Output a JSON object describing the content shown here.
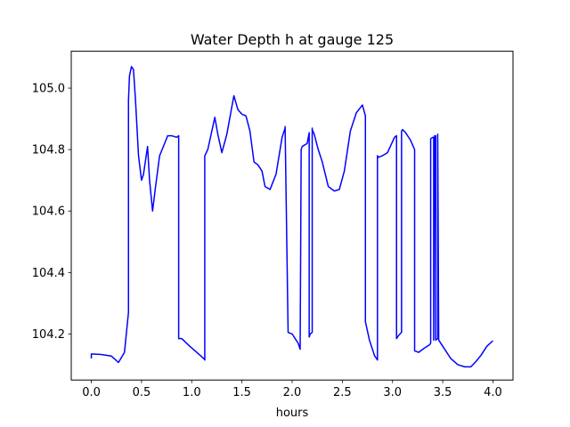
{
  "chart_data": {
    "type": "line",
    "title": "Water Depth h at gauge 125",
    "xlabel": "hours",
    "ylabel": "",
    "xlim": [
      -0.2,
      4.2
    ],
    "ylim": [
      104.05,
      105.12
    ],
    "xticks": [
      0.0,
      0.5,
      1.0,
      1.5,
      2.0,
      2.5,
      3.0,
      3.5,
      4.0
    ],
    "xtick_labels": [
      "0.0",
      "0.5",
      "1.0",
      "1.5",
      "2.0",
      "2.5",
      "3.0",
      "3.5",
      "4.0"
    ],
    "yticks": [
      104.2,
      104.4,
      104.6,
      104.8,
      105.0
    ],
    "ytick_labels": [
      "104.2",
      "104.4",
      "104.6",
      "104.8",
      "105.0"
    ],
    "grid": false,
    "legend": "none",
    "series": [
      {
        "color": "#0000ff",
        "x": [
          0.0,
          0.0,
          0.1,
          0.2,
          0.27,
          0.33,
          0.37,
          0.37,
          0.38,
          0.4,
          0.42,
          0.44,
          0.47,
          0.5,
          0.52,
          0.56,
          0.58,
          0.61,
          0.64,
          0.68,
          0.73,
          0.76,
          0.8,
          0.85,
          0.87,
          0.87,
          0.9,
          0.98,
          1.05,
          1.12,
          1.13,
          1.13,
          1.16,
          1.2,
          1.23,
          1.26,
          1.3,
          1.35,
          1.4,
          1.42,
          1.46,
          1.5,
          1.54,
          1.58,
          1.62,
          1.66,
          1.7,
          1.73,
          1.78,
          1.84,
          1.9,
          1.93,
          1.93,
          1.96,
          2.0,
          2.06,
          2.08,
          2.09,
          2.1,
          2.15,
          2.17,
          2.17,
          2.18,
          2.2,
          2.2,
          2.2,
          2.22,
          2.26,
          2.3,
          2.36,
          2.42,
          2.47,
          2.52,
          2.58,
          2.64,
          2.7,
          2.73,
          2.73,
          2.77,
          2.82,
          2.85,
          2.85,
          2.86,
          2.9,
          2.95,
          3.02,
          3.04,
          3.04,
          3.06,
          3.09,
          3.09,
          3.1,
          3.13,
          3.18,
          3.22,
          3.22,
          3.26,
          3.3,
          3.37,
          3.38,
          3.38,
          3.4,
          3.41,
          3.41,
          3.42,
          3.43,
          3.43,
          3.45,
          3.45,
          3.46,
          3.5,
          3.58,
          3.65,
          3.72,
          3.78,
          3.83,
          3.88,
          3.94,
          4.0
        ],
        "y": [
          104.12,
          104.135,
          104.133,
          104.128,
          104.107,
          104.14,
          104.27,
          104.96,
          105.04,
          105.07,
          105.06,
          104.96,
          104.78,
          104.7,
          104.72,
          104.81,
          104.7,
          104.6,
          104.68,
          104.78,
          104.82,
          104.845,
          104.845,
          104.84,
          104.845,
          104.185,
          104.185,
          104.16,
          104.14,
          104.12,
          104.115,
          104.78,
          104.8,
          104.86,
          104.905,
          104.85,
          104.79,
          104.85,
          104.94,
          104.975,
          104.93,
          104.915,
          104.91,
          104.86,
          104.76,
          104.75,
          104.73,
          104.68,
          104.67,
          104.72,
          104.84,
          104.87,
          104.875,
          104.205,
          104.2,
          104.17,
          104.15,
          104.8,
          104.81,
          104.82,
          104.855,
          104.19,
          104.2,
          104.205,
          104.87,
          104.865,
          104.85,
          104.8,
          104.76,
          104.68,
          104.665,
          104.67,
          104.73,
          104.86,
          104.92,
          104.945,
          104.91,
          104.24,
          104.18,
          104.13,
          104.115,
          104.78,
          104.775,
          104.78,
          104.79,
          104.84,
          104.845,
          104.185,
          104.195,
          104.205,
          104.86,
          104.865,
          104.855,
          104.83,
          104.8,
          104.145,
          104.14,
          104.15,
          104.165,
          104.17,
          104.835,
          104.84,
          104.84,
          104.18,
          104.845,
          104.845,
          104.18,
          104.185,
          104.85,
          104.18,
          104.16,
          104.12,
          104.1,
          104.093,
          104.093,
          104.11,
          104.13,
          104.16,
          104.178
        ]
      }
    ]
  }
}
